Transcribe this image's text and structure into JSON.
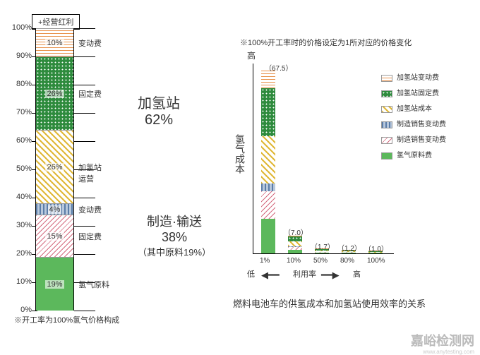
{
  "left_chart": {
    "type": "stacked-bar",
    "top_box_label": "+经营红利",
    "y_ticks": [
      "0%",
      "10%",
      "20%",
      "30%",
      "40%",
      "50%",
      "60%",
      "70%",
      "80%",
      "90%",
      "100%"
    ],
    "segments": [
      {
        "pct": 10,
        "value_label": "10%",
        "name": "变动费",
        "pattern": "orange-dash"
      },
      {
        "pct": 26,
        "value_label": "26%",
        "name": "固定费",
        "pattern": "green-dots"
      },
      {
        "pct": 26,
        "value_label": "26%",
        "name": "加氢站\n运营",
        "pattern": "yellow-diag"
      },
      {
        "pct": 4,
        "value_label": "4%",
        "name": "变动费",
        "pattern": "blue-dash"
      },
      {
        "pct": 15,
        "value_label": "15%",
        "name": "固定费",
        "pattern": "pink-diag"
      },
      {
        "pct": 19,
        "value_label": "19%",
        "name": "氢气原料",
        "pattern": "green-solid"
      }
    ],
    "groups": [
      {
        "title": "加氢站",
        "sub": "62%"
      },
      {
        "title": "制造·输送",
        "sub": "38%",
        "note": "（其中原料19%）"
      }
    ],
    "footnote": "※开工率为100%氢气价格构成"
  },
  "right_chart": {
    "type": "grouped-stacked-bar",
    "top_note": "※100%开工率时的价格设定为1所对应的价格变化",
    "y_label_top": "高",
    "y_label_text": "氢气成本",
    "x_label_low": "低",
    "x_label_high": "高",
    "x_label_mid": "利用率",
    "bars": [
      {
        "x": "1%",
        "value": 67.5,
        "label": "（67.5）"
      },
      {
        "x": "10%",
        "value": 7.0,
        "label": "（7.0）"
      },
      {
        "x": "50%",
        "value": 1.7,
        "label": "（1.7）"
      },
      {
        "x": "80%",
        "value": 1.2,
        "label": "（1.2）"
      },
      {
        "x": "100%",
        "value": 1.0,
        "label": "（1.0）"
      }
    ],
    "max_value": 67.5,
    "caption": "燃料电池车的供氢成本和加氢站使用效率的关系"
  },
  "legend": [
    {
      "label": "加氢站变动费",
      "pattern": "orange-dash"
    },
    {
      "label": "加氢站固定费",
      "pattern": "green-dots"
    },
    {
      "label": "加氢站成本",
      "pattern": "yellow-diag"
    },
    {
      "label": "制造销售变动费",
      "pattern": "blue-dash"
    },
    {
      "label": "制造销售变动费",
      "pattern": "pink-diag"
    },
    {
      "label": "氢气原料费",
      "pattern": "green-solid"
    }
  ],
  "patterns": {
    "orange-dash": {
      "bg": "#fff",
      "fg": "#e8914a",
      "style": "repeating-linear-gradient(0deg,#e8914a 0 1px,#fff 1px 4px)"
    },
    "green-dots": {
      "bg": "#2e8b3d",
      "fg": "#fff",
      "style": "radial-gradient(#fff 1px,transparent 1px) 0 0/5px 5px,#2e8b3d"
    },
    "yellow-diag": {
      "bg": "#fff",
      "fg": "#e0b838",
      "style": "repeating-linear-gradient(45deg,#e0b838 0 2px,#fff 2px 6px)"
    },
    "blue-dash": {
      "bg": "#fff",
      "fg": "#5b7da8",
      "style": "repeating-linear-gradient(90deg,#5b7da8 0 2px,#b8c8dc 2px 5px)"
    },
    "pink-diag": {
      "bg": "#fff",
      "fg": "#d46a7e",
      "style": "repeating-linear-gradient(135deg,#d46a7e 0 1px,#fff 1px 5px)"
    },
    "green-solid": {
      "bg": "#5cb85c",
      "fg": "#fff",
      "style": "#5cb85c"
    }
  },
  "watermark": "嘉峪检测网",
  "watermark_sub": "www.anytesting.com"
}
